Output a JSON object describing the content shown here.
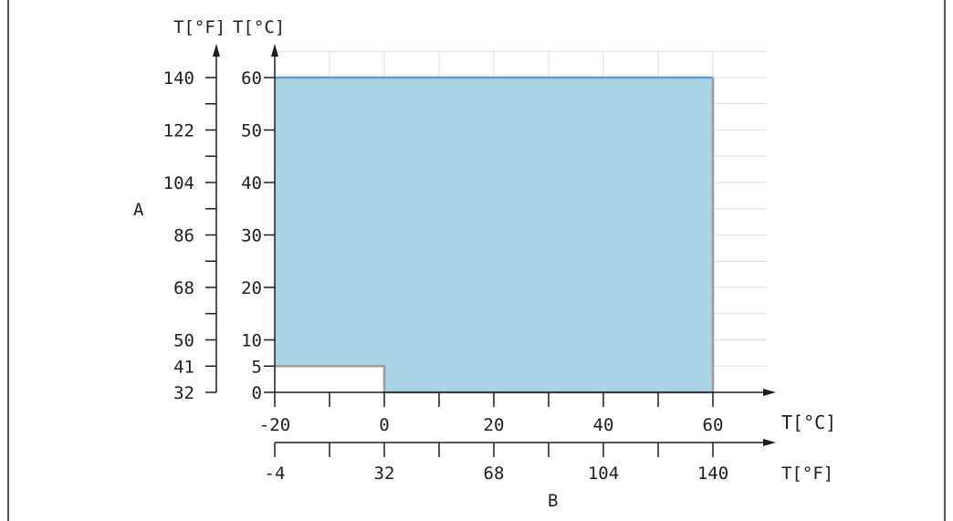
{
  "chart_data": {
    "type": "area",
    "title": "",
    "region_color": "#abd3e6",
    "region_top_color": "#5b9bd5",
    "exclusion_color": "#ffffff",
    "boundary_color": "#9a9a9a",
    "region": [
      [
        -20,
        5
      ],
      [
        0,
        5
      ],
      [
        0,
        0
      ],
      [
        60,
        0
      ],
      [
        60,
        60
      ],
      [
        -20,
        60
      ]
    ],
    "exclusion": [
      [
        -20,
        0
      ],
      [
        0,
        0
      ],
      [
        0,
        5
      ],
      [
        -20,
        5
      ]
    ],
    "x_axis": {
      "label": "B",
      "unit_label_primary": "T[°C]",
      "unit_label_secondary": "T[°F]",
      "range": [
        -20,
        60
      ],
      "ticks_c": [
        -20,
        0,
        20,
        40,
        60
      ],
      "ticks_f": [
        "-4",
        "32",
        "68",
        "104",
        "140"
      ]
    },
    "y_axis": {
      "label": "A",
      "unit_label_primary": "T[°C]",
      "unit_label_secondary": "T[°F]",
      "range": [
        0,
        60
      ],
      "ticks_c": [
        0,
        5,
        10,
        20,
        30,
        40,
        50,
        60
      ],
      "ticks_f": [
        "32",
        "41",
        "50",
        "68",
        "86",
        "104",
        "122",
        "140"
      ]
    },
    "grid": true
  }
}
